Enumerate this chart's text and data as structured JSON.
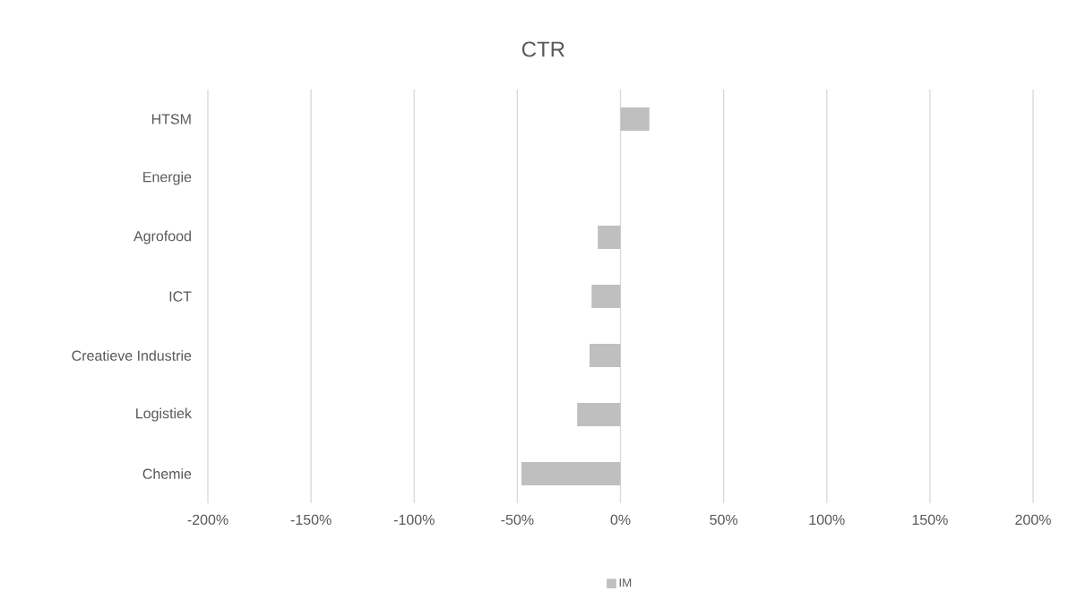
{
  "chart_data": {
    "type": "bar",
    "orientation": "horizontal",
    "title": "CTR",
    "categories": [
      "HTSM",
      "Energie",
      "Agrofood",
      "ICT",
      "Creatieve Industrie",
      "Logistiek",
      "Chemie"
    ],
    "series": [
      {
        "name": "IM",
        "color": "#bfbfbf",
        "values": [
          14,
          0,
          -11,
          -14,
          -15,
          -21,
          -48
        ]
      }
    ],
    "xlim": [
      -200,
      200
    ],
    "xticks": [
      {
        "value": -200,
        "label": "-200%"
      },
      {
        "value": -150,
        "label": "-150%"
      },
      {
        "value": -100,
        "label": "-100%"
      },
      {
        "value": -50,
        "label": "-50%"
      },
      {
        "value": 0,
        "label": "0%"
      },
      {
        "value": 50,
        "label": "50%"
      },
      {
        "value": 100,
        "label": "100%"
      },
      {
        "value": 150,
        "label": "150%"
      },
      {
        "value": 200,
        "label": "200%"
      }
    ],
    "grid": "x",
    "legend": "bottom"
  }
}
